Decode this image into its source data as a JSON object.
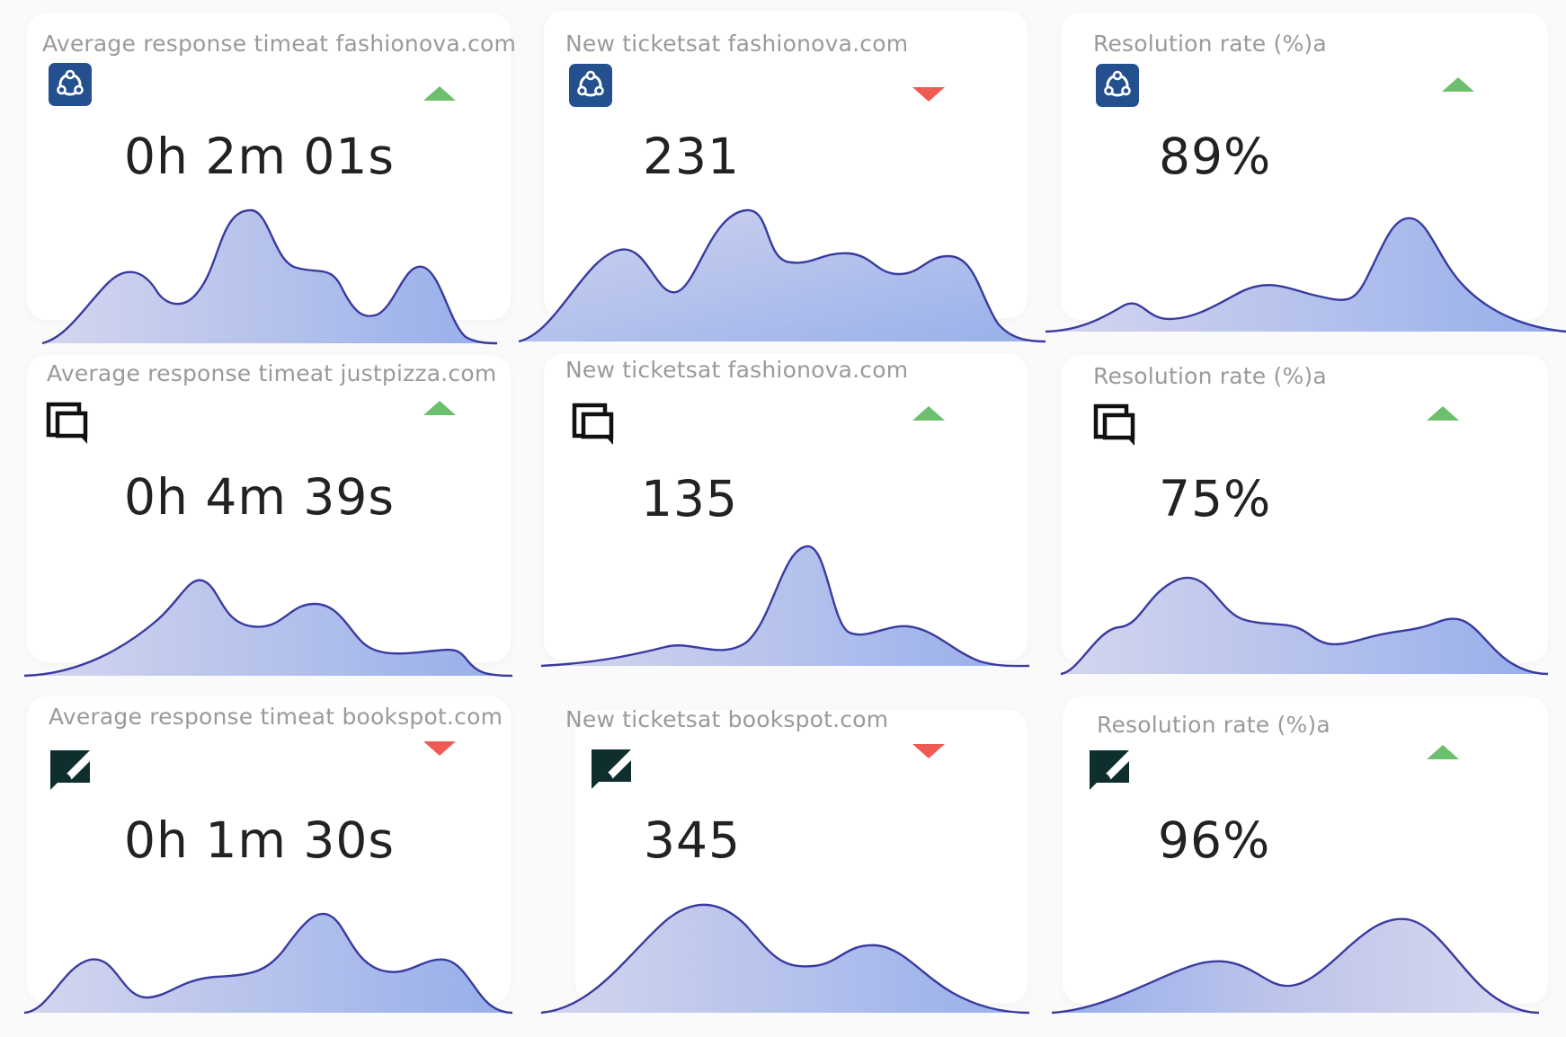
{
  "colors": {
    "up": "#6cbf6c",
    "down": "#ef5a52",
    "line": "#3a3aa0",
    "fill_light": "#d4d6ee",
    "fill_dark": "#96aeea",
    "brand_blue": "#24508f",
    "zendesk": "#0f2f2f"
  },
  "cards": [
    {
      "title": "Average response timeat fashionova.com",
      "value": "0h 2m 01s",
      "icon": "blue-triangle-logo-icon",
      "trend": "up"
    },
    {
      "title": "New ticketsat fashionova.com",
      "value": "231",
      "icon": "blue-triangle-logo-icon",
      "trend": "down"
    },
    {
      "title": "Resolution rate (%)a",
      "value": "89%",
      "icon": "blue-triangle-logo-icon",
      "trend": "up"
    },
    {
      "title": "Average response timeat justpizza.com",
      "value": "0h 4m 39s",
      "icon": "chat-squares-icon",
      "trend": "up"
    },
    {
      "title": "New ticketsat fashionova.com",
      "value": "135",
      "icon": "chat-squares-icon",
      "trend": "up"
    },
    {
      "title": "Resolution rate (%)a",
      "value": "75%",
      "icon": "chat-squares-icon",
      "trend": "up"
    },
    {
      "title": "Average response timeat bookspot.com",
      "value": "0h 1m 30s",
      "icon": "zendesk-logo-icon",
      "trend": "down"
    },
    {
      "title": "New ticketsat bookspot.com",
      "value": "345",
      "icon": "zendesk-logo-icon",
      "trend": "down"
    },
    {
      "title": "Resolution rate (%)a",
      "value": "96%",
      "icon": "zendesk-logo-icon",
      "trend": "up"
    }
  ]
}
